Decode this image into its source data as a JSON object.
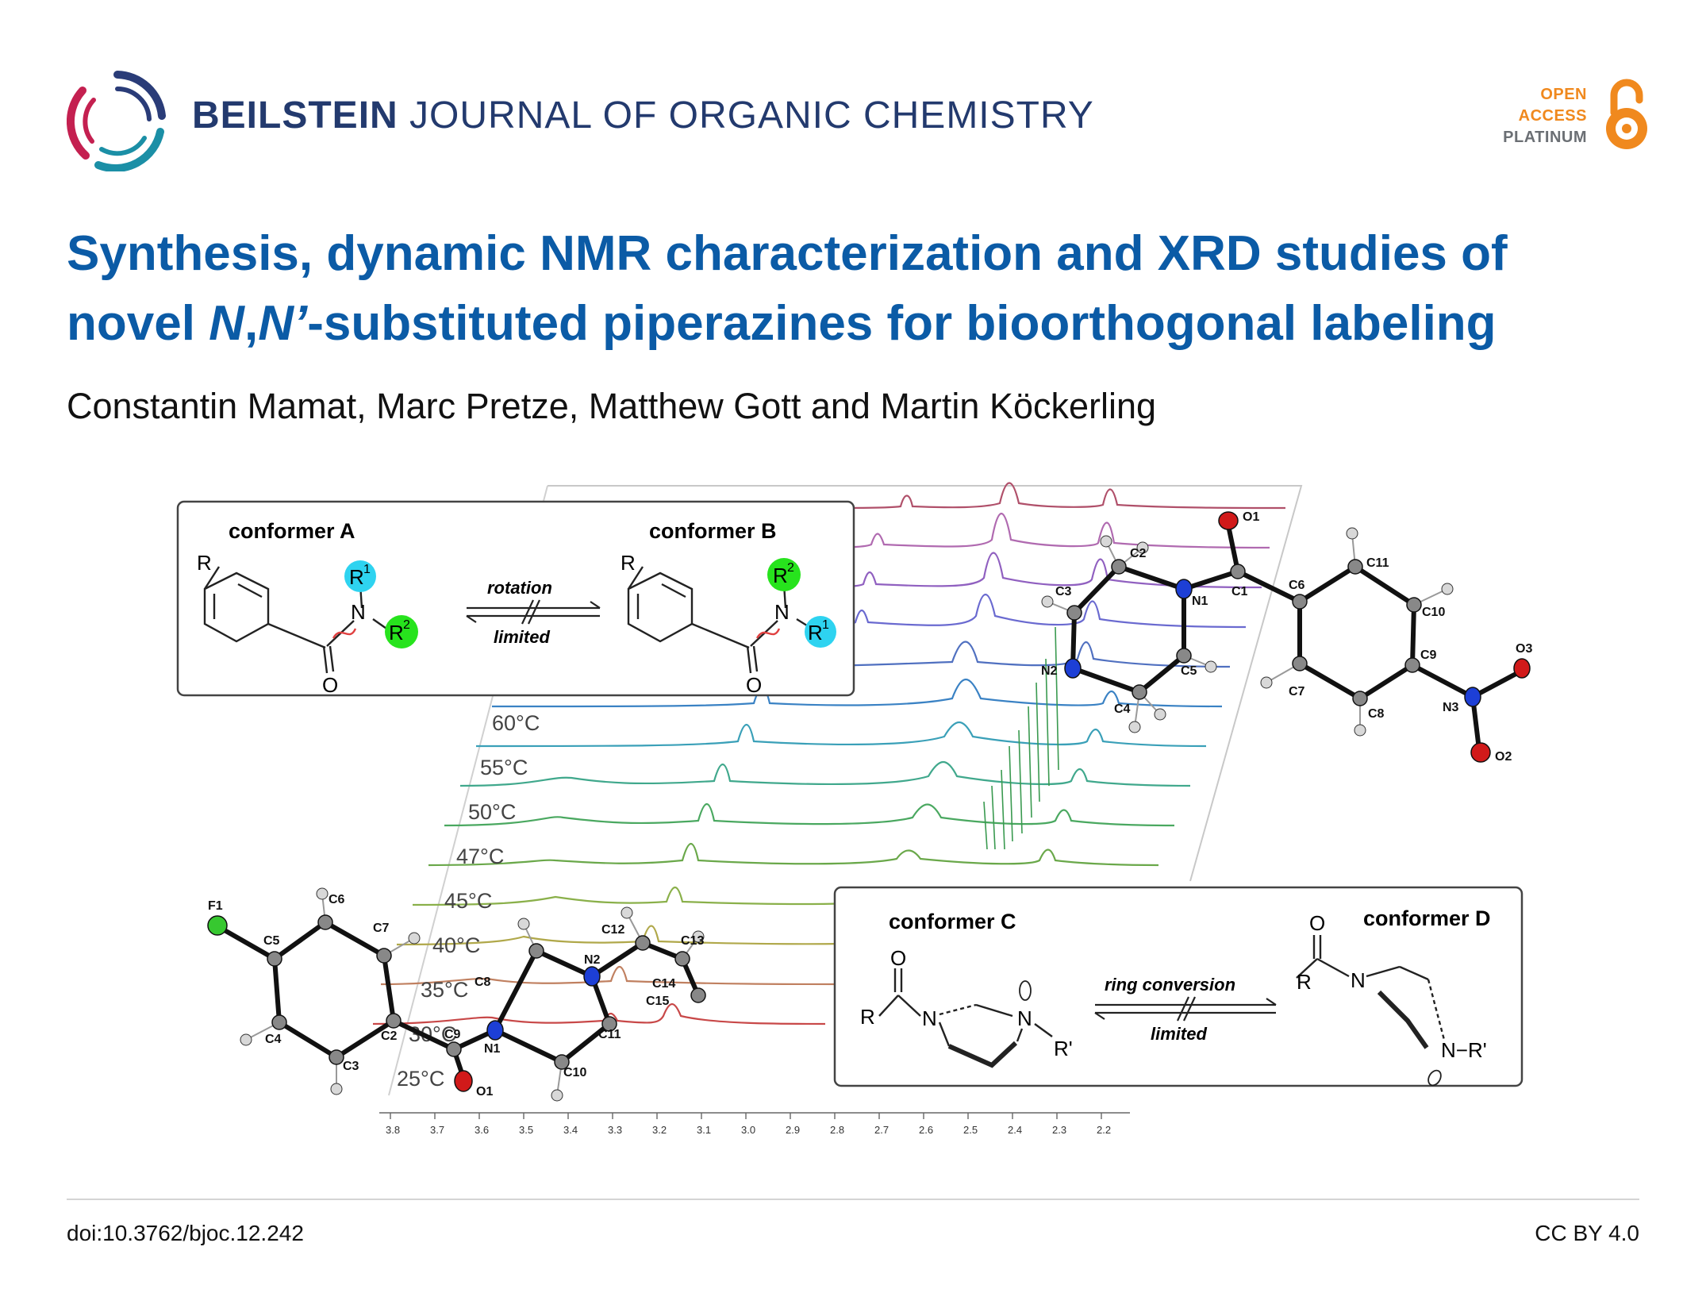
{
  "header": {
    "journal_bold": "BEILSTEIN",
    "journal_rest": "JOURNAL OF ORGANIC CHEMISTRY",
    "badge": {
      "line1": "OPEN",
      "line2": "ACCESS",
      "line3": "PLATINUM"
    }
  },
  "article": {
    "title_line1": "Synthesis, dynamic NMR characterization and XRD studies of",
    "title_line2_pre": "novel ",
    "title_line2_italic_a": "N",
    "title_line2_comma": ",",
    "title_line2_italic_b": "N’",
    "title_line2_post": "-substituted piperazines for bioorthogonal labeling",
    "authors": "Constantin Mamat, Marc Pretze, Matthew Gott and Martin Köckerling"
  },
  "abstract_graphic": {
    "box_ab": {
      "conformer_a": "conformer A",
      "conformer_b": "conformer B",
      "arrow_top": "rotation",
      "arrow_bottom": "limited",
      "R": "R",
      "N": "N",
      "O": "O",
      "R1": "R",
      "R1_sup": "1",
      "R2": "R",
      "R2_sup": "2"
    },
    "box_cd": {
      "conformer_c": "conformer C",
      "conformer_d": "conformer D",
      "arrow_top": "ring conversion",
      "arrow_bottom": "limited",
      "R": "R",
      "N": "N",
      "O": "O",
      "Rp": "R'",
      "NRp": "N−R'"
    },
    "temperatures": [
      "60°C",
      "55°C",
      "50°C",
      "47°C",
      "45°C",
      "40°C",
      "35°C",
      "30°C",
      "25°C"
    ],
    "ppm_axis": [
      "3.8",
      "3.7",
      "3.6",
      "3.5",
      "3.4",
      "3.3",
      "3.2",
      "3.1",
      "3.0",
      "2.9",
      "2.8",
      "2.7",
      "2.6",
      "2.5",
      "2.4",
      "2.3",
      "2.2"
    ],
    "colors": {
      "title_blue": "#0b5ba6",
      "journal_navy": "#233a6e",
      "oa_orange": "#f0891e",
      "cyan_atom": "#2ed3f0",
      "green_atom": "#27e31d",
      "nitrogen_blue": "#1d3fd6",
      "oxygen_red": "#d11a1a",
      "fluorine_green": "#37c830"
    },
    "crystal_right_labels": [
      "O1",
      "C1",
      "C2",
      "C3",
      "N1",
      "N2",
      "C4",
      "C5",
      "C6",
      "C7",
      "C8",
      "C9",
      "C10",
      "C11",
      "N3",
      "O2",
      "O3"
    ],
    "crystal_left_labels": [
      "F1",
      "C5",
      "C6",
      "C7",
      "C4",
      "C3",
      "C2",
      "C9",
      "O1",
      "N1",
      "C8",
      "C10",
      "C11",
      "C12",
      "C13",
      "C14",
      "C15",
      "N2"
    ]
  },
  "footer": {
    "doi": "doi:10.3762/bjoc.12.242",
    "license": "CC BY 4.0"
  }
}
